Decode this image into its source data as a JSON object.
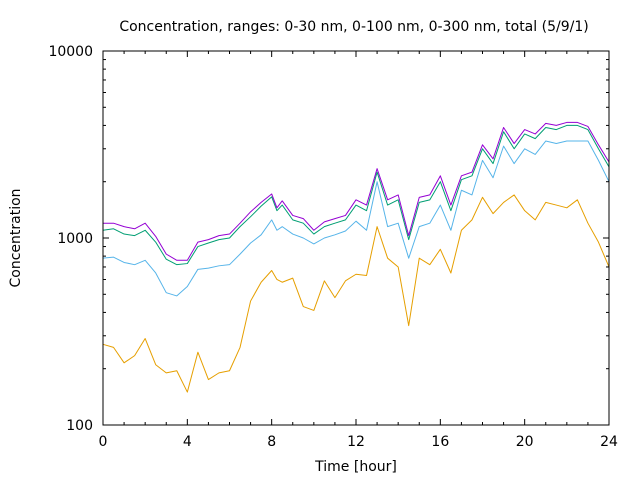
{
  "chart_data": {
    "type": "line",
    "title": "Concentration, ranges: 0-30 nm, 0-100 nm, 0-300 nm, total (5/9/1)",
    "xlabel": "Time [hour]",
    "ylabel": "Concentration",
    "xlim": [
      0,
      24
    ],
    "ylim": [
      100,
      10000
    ],
    "yscale": "log",
    "grid": false,
    "x_ticks": [
      "0",
      "4",
      "8",
      "12",
      "16",
      "20",
      "24"
    ],
    "y_ticks": [
      "100",
      "1000",
      "10000"
    ],
    "x": [
      0,
      0.5,
      1,
      1.5,
      2,
      2.5,
      3,
      3.5,
      4,
      4.5,
      5,
      5.5,
      6,
      6.5,
      7,
      7.5,
      8,
      8.25,
      8.5,
      9,
      9.5,
      10,
      10.5,
      11,
      11.5,
      12,
      12.5,
      13,
      13.5,
      14,
      14.5,
      15,
      15.5,
      16,
      16.5,
      17,
      17.5,
      18,
      18.5,
      19,
      19.5,
      20,
      20.5,
      21,
      21.5,
      22,
      22.5,
      23,
      23.5,
      24
    ],
    "series": [
      {
        "name": "0-30 nm",
        "color": "#e69f00",
        "values": [
          270,
          260,
          215,
          235,
          290,
          210,
          190,
          195,
          150,
          245,
          175,
          190,
          195,
          260,
          460,
          580,
          670,
          600,
          580,
          610,
          430,
          410,
          590,
          480,
          590,
          640,
          630,
          1150,
          780,
          700,
          340,
          780,
          720,
          870,
          650,
          1100,
          1250,
          1650,
          1350,
          1550,
          1700,
          1400,
          1250,
          1550,
          1500,
          1450,
          1600,
          1200,
          950,
          700
        ]
      },
      {
        "name": "0-100 nm",
        "color": "#56b4e9",
        "values": [
          780,
          790,
          740,
          720,
          760,
          650,
          510,
          490,
          550,
          680,
          690,
          710,
          720,
          820,
          940,
          1040,
          1250,
          1100,
          1150,
          1050,
          1000,
          930,
          1000,
          1040,
          1090,
          1230,
          1100,
          2000,
          1150,
          1200,
          780,
          1150,
          1200,
          1500,
          1100,
          1800,
          1700,
          2600,
          2100,
          3100,
          2500,
          3000,
          2800,
          3300,
          3200,
          3300,
          3300,
          3300,
          2600,
          2000
        ]
      },
      {
        "name": "0-300 nm",
        "color": "#009e73",
        "values": [
          1100,
          1120,
          1050,
          1030,
          1100,
          950,
          770,
          720,
          730,
          900,
          940,
          980,
          1000,
          1150,
          1300,
          1480,
          1660,
          1400,
          1500,
          1250,
          1200,
          1050,
          1150,
          1200,
          1250,
          1500,
          1400,
          2250,
          1500,
          1600,
          980,
          1550,
          1600,
          2000,
          1400,
          2050,
          2150,
          3000,
          2500,
          3700,
          3000,
          3600,
          3400,
          3900,
          3800,
          4000,
          4000,
          3800,
          3000,
          2400
        ]
      },
      {
        "name": "total",
        "color": "#9400d3",
        "values": [
          1200,
          1200,
          1150,
          1120,
          1200,
          1020,
          820,
          760,
          760,
          950,
          980,
          1030,
          1050,
          1200,
          1380,
          1550,
          1720,
          1450,
          1580,
          1320,
          1270,
          1100,
          1220,
          1270,
          1320,
          1600,
          1500,
          2350,
          1600,
          1700,
          1030,
          1650,
          1700,
          2150,
          1500,
          2150,
          2250,
          3150,
          2650,
          3900,
          3200,
          3800,
          3600,
          4100,
          4000,
          4150,
          4150,
          3950,
          3150,
          2550
        ]
      }
    ]
  }
}
